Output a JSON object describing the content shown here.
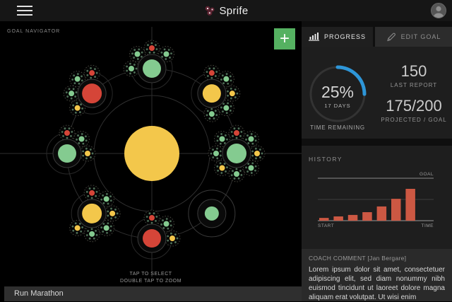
{
  "header": {
    "title": "Sprife"
  },
  "navigator": {
    "label": "GOAL NAVIGATOR",
    "add_button": "+",
    "hint_line1": "TAP TO SELECT",
    "hint_line2": "DOUBLE TAP TO ZOOM",
    "selected_goal": "Run Marathon",
    "palette": {
      "green": "#84cb90",
      "yellow": "#f3c74b",
      "red": "#d54538",
      "dot": "#4f7058"
    },
    "center": {
      "color": "yellow"
    },
    "nodes": [
      {
        "angle": 90,
        "color": "green",
        "r": 13,
        "subs": [
          {
            "a": 180,
            "c": "green"
          },
          {
            "a": 135,
            "c": "green"
          },
          {
            "a": 90,
            "c": "red"
          },
          {
            "a": 45,
            "c": "green"
          }
        ]
      },
      {
        "angle": 135,
        "color": "red",
        "r": 14,
        "subs": [
          {
            "a": 225,
            "c": "yellow"
          },
          {
            "a": 180,
            "c": "green"
          },
          {
            "a": 135,
            "c": "green"
          },
          {
            "a": 90,
            "c": "red"
          }
        ]
      },
      {
        "angle": 45,
        "color": "yellow",
        "r": 13,
        "subs": [
          {
            "a": 90,
            "c": "red"
          },
          {
            "a": 45,
            "c": "green"
          },
          {
            "a": 0,
            "c": "yellow"
          },
          {
            "a": 315,
            "c": "green"
          },
          {
            "a": 270,
            "c": "green"
          }
        ]
      },
      {
        "angle": 180,
        "color": "green",
        "r": 13,
        "subs": [
          {
            "a": 90,
            "c": "red"
          },
          {
            "a": 45,
            "c": "green"
          },
          {
            "a": 0,
            "c": "yellow"
          }
        ]
      },
      {
        "angle": 0,
        "color": "green",
        "r": 14,
        "subs": [
          {
            "a": 90,
            "c": "red"
          },
          {
            "a": 45,
            "c": "green"
          },
          {
            "a": 0,
            "c": "yellow"
          },
          {
            "a": 315,
            "c": "green"
          },
          {
            "a": 270,
            "c": "green"
          },
          {
            "a": 225,
            "c": "yellow"
          },
          {
            "a": 180,
            "c": "green"
          },
          {
            "a": 135,
            "c": "green"
          }
        ]
      },
      {
        "angle": 225,
        "color": "yellow",
        "r": 14,
        "subs": [
          {
            "a": 90,
            "c": "red"
          },
          {
            "a": 45,
            "c": "green"
          },
          {
            "a": 0,
            "c": "yellow"
          },
          {
            "a": 315,
            "c": "green"
          },
          {
            "a": 270,
            "c": "green"
          },
          {
            "a": 225,
            "c": "yellow"
          }
        ]
      },
      {
        "angle": 315,
        "color": "green",
        "r": 10,
        "selected": true,
        "subs": []
      },
      {
        "angle": 270,
        "color": "red",
        "r": 13,
        "subs": [
          {
            "a": 90,
            "c": "red"
          },
          {
            "a": 45,
            "c": "green"
          },
          {
            "a": 0,
            "c": "yellow"
          }
        ]
      }
    ]
  },
  "panel": {
    "tabs": [
      {
        "label": "PROGRESS",
        "icon": "bar-chart-icon",
        "active": true
      },
      {
        "label": "EDIT GOAL",
        "icon": "pencil-icon",
        "active": false
      }
    ],
    "progress": {
      "percent": "25%",
      "percent_value": 25,
      "days": "17 DAYS",
      "caption": "TIME REMAINING",
      "last_report_value": "150",
      "last_report_label": "LAST REPORT",
      "projected_value": "175/200",
      "projected_label": "PROJECTED / GOAL",
      "arc_color": "#2e96d8",
      "track_color": "#333333"
    },
    "history_title": "HISTORY",
    "coach": {
      "title": "COACH COMMENT [Jan Bergare]",
      "body": "Lorem ipsum dolor sit amet, consectetuer adipiscing elit, sed diam nonummy nibh euismod tincidunt ut laoreet dolore magna aliquam erat volutpat. Ut wisi enim"
    }
  },
  "chart_data": {
    "type": "bar",
    "title": "HISTORY",
    "values": [
      13,
      20,
      27,
      40,
      67,
      103,
      150
    ],
    "goal": 200,
    "goal_label": "GOAL",
    "x_start_label": "START",
    "x_end_label": "TIME",
    "bar_color": "#cc5843",
    "ylim": [
      0,
      200
    ],
    "legend": "none",
    "grid": "single-midline"
  }
}
